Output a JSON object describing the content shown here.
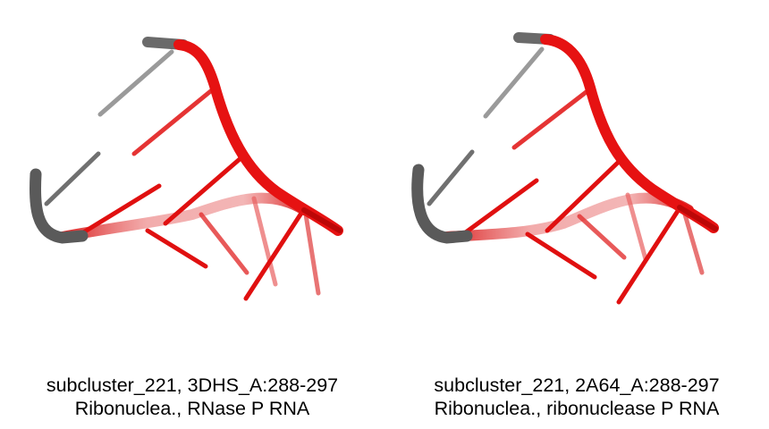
{
  "panels": [
    {
      "caption_line1": "subcluster_221, 3DHS_A:288-297",
      "caption_line2": "Ribonuclea., RNase P RNA"
    },
    {
      "caption_line1": "subcluster_221, 2A64_A:288-297",
      "caption_line2": "Ribonuclea., ribonuclease P RNA"
    }
  ],
  "colors": {
    "backbone_highlight": "#e41010",
    "backbone_unmatched": "#5a5a5a",
    "base_unmatched": "#9a9a9a",
    "background": "#ffffff"
  }
}
